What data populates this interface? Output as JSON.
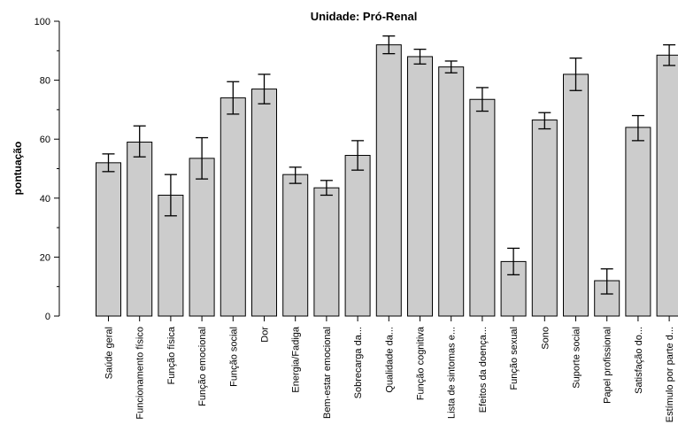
{
  "chart_data": {
    "type": "bar",
    "title": "Unidade: Pró-Renal",
    "xlabel": "",
    "ylabel": "pontuação",
    "ylim": [
      0,
      100
    ],
    "yticks": [
      0,
      20,
      40,
      60,
      80,
      100
    ],
    "grid": false,
    "bar_color": "#cccccc",
    "categories": [
      "Saúde geral",
      "Funcionamento físico",
      "Função física",
      "Função emocional",
      "Função social",
      "Dor",
      "Energia/Fadiga",
      "Bem-estar emocional",
      "Sobrecarga da...",
      "Qualidade da...",
      "Função cognitiva",
      "Lista de sintomas e...",
      "Efeitos da doença...",
      "Função sexual",
      "Sono",
      "Suporte social",
      "Papel profissional",
      "Satisfação do...",
      "Estímulo por parte d..."
    ],
    "values": [
      52,
      59,
      41,
      53.5,
      74,
      77,
      48,
      43.5,
      54.5,
      92,
      88,
      84.5,
      73.5,
      18.5,
      66.5,
      82,
      12,
      64,
      88.5
    ],
    "error_low": [
      49,
      54,
      34,
      46.5,
      68.5,
      72,
      45,
      41,
      49.5,
      89,
      85.5,
      82.5,
      69.5,
      14,
      63.5,
      76.5,
      7.5,
      59.5,
      85
    ],
    "error_high": [
      55,
      64.5,
      48,
      60.5,
      79.5,
      82,
      50.5,
      46,
      59.5,
      95,
      90.5,
      86.5,
      77.5,
      23,
      69,
      87.5,
      16,
      68,
      92
    ]
  }
}
